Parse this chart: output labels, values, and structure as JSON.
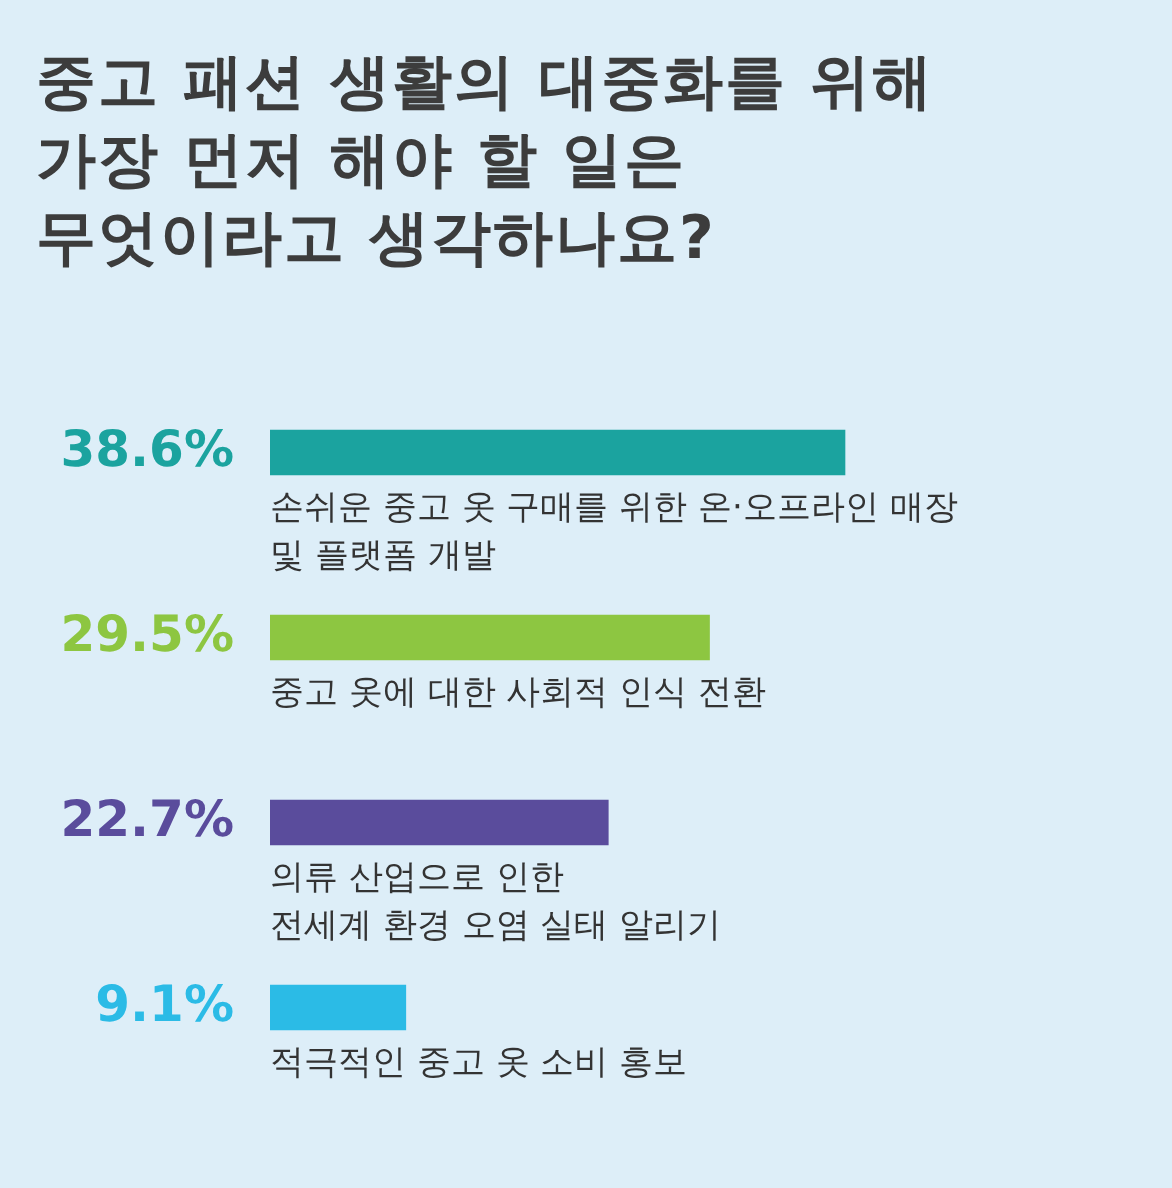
{
  "chart_data": {
    "type": "bar",
    "orientation": "horizontal",
    "title": "중고 패션 생활의 대중화를 위해\n가장 먼저 해야 할 일은\n무엇이라고 생각하나요?",
    "categories": [
      "손쉬운 중고 옷 구매를 위한 온·오프라인 매장\n및 플랫폼 개발",
      "중고 옷에 대한 사회적 인식 전환",
      "의류 산업으로 인한\n전세계 환경 오염 실태 알리기",
      "적극적인 중고 옷 소비 홍보"
    ],
    "values": [
      38.6,
      29.5,
      22.7,
      9.1
    ],
    "colors": [
      "#1ba39f",
      "#8dc641",
      "#5a4c9c",
      "#2bbbe6"
    ],
    "value_labels": [
      "38.6%",
      "29.5%",
      "22.7%",
      "9.1%"
    ]
  }
}
